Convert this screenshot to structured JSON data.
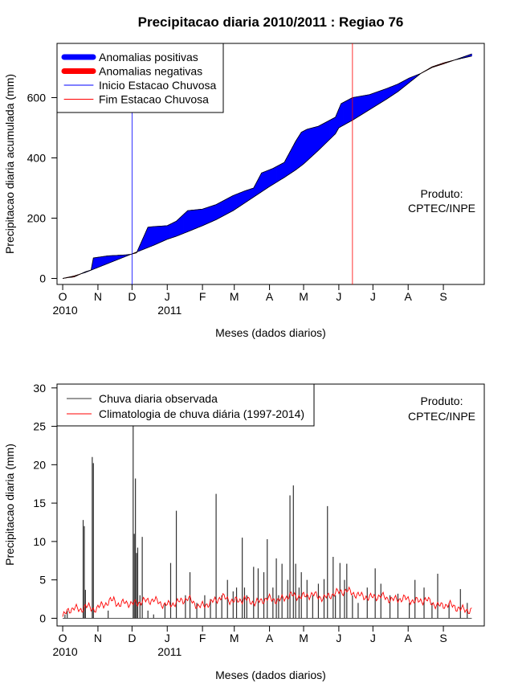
{
  "chart_data": [
    {
      "type": "area",
      "title": "Precipitacao diaria 2010/2011 : Regiao 76",
      "xlabel": "Meses (dados diarios)",
      "ylabel": "Precipitacao diaria acumulada (mm)",
      "xlim_days": [
        -5,
        371
      ],
      "ylim": [
        -20,
        780
      ],
      "yticks": [
        0,
        200,
        400,
        600
      ],
      "month_ticks": [
        {
          "label": "O",
          "day": 0
        },
        {
          "label": "N",
          "day": 31
        },
        {
          "label": "D",
          "day": 61
        },
        {
          "label": "J",
          "day": 92
        },
        {
          "label": "F",
          "day": 123
        },
        {
          "label": "M",
          "day": 151
        },
        {
          "label": "A",
          "day": 182
        },
        {
          "label": "M",
          "day": 212
        },
        {
          "label": "J",
          "day": 243
        },
        {
          "label": "J",
          "day": 273
        },
        {
          "label": "A",
          "day": 304
        },
        {
          "label": "S",
          "day": 335
        }
      ],
      "year_labels": [
        {
          "label": "2010",
          "day": 0
        },
        {
          "label": "2011",
          "day": 92
        }
      ],
      "series": [
        {
          "name": "observed_cumulative",
          "days": [
            0,
            5,
            10,
            20,
            25,
            27,
            40,
            55,
            60,
            65,
            75,
            80,
            92,
            100,
            110,
            123,
            135,
            150,
            160,
            168,
            175,
            185,
            195,
            205,
            210,
            215,
            225,
            240,
            245,
            255,
            270,
            285,
            295,
            305,
            315,
            325,
            335,
            345,
            360
          ],
          "values": [
            0,
            3,
            5,
            22,
            28,
            68,
            75,
            78,
            80,
            85,
            170,
            172,
            175,
            190,
            225,
            230,
            245,
            275,
            290,
            300,
            350,
            365,
            385,
            455,
            485,
            495,
            505,
            535,
            580,
            600,
            610,
            630,
            645,
            665,
            680,
            700,
            712,
            725,
            745
          ]
        },
        {
          "name": "climatology_cumulative",
          "days": [
            0,
            10,
            20,
            30,
            40,
            50,
            60,
            70,
            80,
            92,
            100,
            110,
            123,
            135,
            150,
            160,
            170,
            182,
            195,
            205,
            212,
            225,
            240,
            243,
            255,
            270,
            285,
            295,
            305,
            315,
            325,
            335,
            345,
            360
          ],
          "values": [
            0,
            8,
            20,
            35,
            50,
            65,
            80,
            95,
            110,
            130,
            140,
            155,
            175,
            195,
            225,
            250,
            275,
            305,
            335,
            360,
            380,
            425,
            480,
            500,
            525,
            560,
            595,
            620,
            650,
            680,
            702,
            715,
            725,
            738
          ]
        }
      ],
      "legend": {
        "position": "top-left",
        "items": [
          {
            "label": "Anomalias positivas",
            "color": "#0000ff",
            "style": "thick-line"
          },
          {
            "label": "Anomalias negativas",
            "color": "#ff0000",
            "style": "thick-line"
          },
          {
            "label": "Inicio Estacao Chuvosa",
            "color": "#0000ff",
            "style": "thin-line"
          },
          {
            "label": "Fim Estacao Chuvosa",
            "color": "#ff0000",
            "style": "thin-line"
          }
        ]
      },
      "vlines": [
        {
          "name": "inicio",
          "day": 61,
          "color": "#0000ff"
        },
        {
          "name": "fim",
          "day": 255,
          "color": "#ff0000"
        }
      ],
      "annotation": [
        "Produto:",
        "CPTEC/INPE"
      ],
      "colors": {
        "positive": "#0000ff",
        "negative": "#ff0000"
      }
    },
    {
      "type": "bar",
      "xlabel": "Meses (dados diarios)",
      "ylabel": "Precipitacao diaria (mm)",
      "xlim_days": [
        -5,
        371
      ],
      "ylim": [
        -1,
        30.5
      ],
      "yticks": [
        0,
        5,
        10,
        15,
        20,
        25,
        30
      ],
      "month_ticks": [
        {
          "label": "O",
          "day": 0
        },
        {
          "label": "N",
          "day": 31
        },
        {
          "label": "D",
          "day": 61
        },
        {
          "label": "J",
          "day": 92
        },
        {
          "label": "F",
          "day": 123
        },
        {
          "label": "M",
          "day": 151
        },
        {
          "label": "A",
          "day": 182
        },
        {
          "label": "M",
          "day": 212
        },
        {
          "label": "J",
          "day": 243
        },
        {
          "label": "J",
          "day": 273
        },
        {
          "label": "A",
          "day": 304
        },
        {
          "label": "S",
          "day": 335
        }
      ],
      "year_labels": [
        {
          "label": "2010",
          "day": 0
        },
        {
          "label": "2011",
          "day": 92
        }
      ],
      "observed_daily": {
        "name": "Chuva diaria observada",
        "color": "#333333",
        "days": [
          2,
          4,
          18,
          19,
          20,
          26,
          27,
          40,
          62,
          63,
          64,
          65,
          66,
          68,
          70,
          75,
          80,
          90,
          95,
          100,
          108,
          112,
          118,
          125,
          130,
          135,
          140,
          145,
          150,
          153,
          158,
          160,
          162,
          168,
          172,
          177,
          180,
          185,
          188,
          190,
          193,
          198,
          200,
          203,
          205,
          208,
          210,
          215,
          220,
          225,
          230,
          233,
          238,
          240,
          244,
          248,
          250,
          255,
          260,
          268,
          275,
          280,
          288,
          295,
          305,
          310,
          318,
          325,
          330,
          340,
          350,
          356
        ],
        "values": [
          0.5,
          1,
          12.8,
          12,
          3.7,
          21,
          20.2,
          1,
          25,
          11,
          18.2,
          8.5,
          9.2,
          3,
          10.6,
          1,
          0.5,
          2,
          7.2,
          14,
          3,
          6,
          2,
          3,
          2.5,
          16.2,
          3,
          5,
          3.5,
          4,
          10.5,
          4,
          3,
          6.7,
          6.5,
          6,
          10.3,
          4,
          7.8,
          3,
          7.1,
          5,
          16,
          17.3,
          7.1,
          4,
          6,
          5,
          3,
          4.5,
          5.1,
          14.6,
          8,
          3,
          7.2,
          5,
          7.1,
          3,
          2,
          4,
          6.5,
          4.5,
          3,
          3.2,
          2,
          5,
          4,
          2,
          5.8,
          2,
          3.8,
          2
        ]
      },
      "climatology": {
        "name": "Climatologia de chuva diária (1997-2014)",
        "color": "#ff0000",
        "days": [
          0,
          5,
          10,
          15,
          20,
          25,
          30,
          35,
          40,
          45,
          50,
          55,
          60,
          70,
          80,
          90,
          100,
          110,
          120,
          130,
          140,
          150,
          160,
          170,
          180,
          190,
          200,
          210,
          220,
          230,
          240,
          250,
          260,
          270,
          280,
          290,
          300,
          310,
          320,
          330,
          340,
          350,
          360
        ],
        "values": [
          0.2,
          1.0,
          1.4,
          1.0,
          1.6,
          1.3,
          1.2,
          1.8,
          2.0,
          2.5,
          1.6,
          2.2,
          1.8,
          2.2,
          2.4,
          1.7,
          2.0,
          2.6,
          1.5,
          2.0,
          2.8,
          2.2,
          2.5,
          2.0,
          2.6,
          2.3,
          3.0,
          2.8,
          3.1,
          2.6,
          3.3,
          3.6,
          3.0,
          2.7,
          2.9,
          2.4,
          2.6,
          2.2,
          2.4,
          1.6,
          1.8,
          1.2,
          1.0
        ]
      },
      "legend": {
        "position": "top-left",
        "items": [
          {
            "label": "Chuva diaria observada",
            "color": "#333333"
          },
          {
            "label": "Climatologia de chuva diária (1997-2014)",
            "color": "#ff0000"
          }
        ]
      },
      "annotation": [
        "Produto:",
        "CPTEC/INPE"
      ]
    }
  ]
}
